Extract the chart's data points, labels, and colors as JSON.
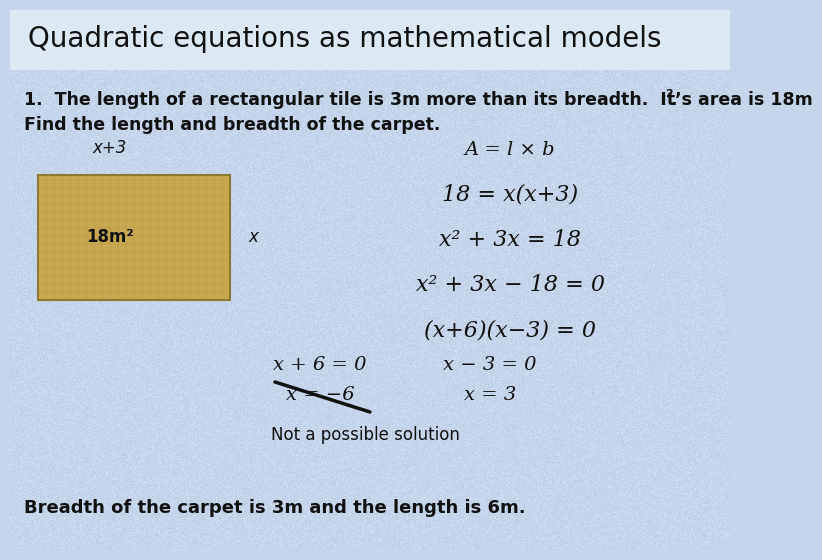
{
  "title": "Quadratic equations as mathematical models",
  "title_fontsize": 20,
  "title_color": "#111111",
  "bg_color": "#c5d5eb",
  "problem_line1": "1.  The length of a rectangular tile is 3m more than its breadth.  It’s area is 18m",
  "problem_sup": "2",
  "problem_sup_dot": ".",
  "problem_line2": "Find the length and breadth of the carpet.",
  "rect_facecolor": "#c8a850",
  "rect_edge": "#8B7A30",
  "label_x_plus_3": "x+3",
  "label_18m2": "18m²",
  "label_x_side": "x",
  "eq1": "A = l × b",
  "eq2": "18 = x(x+3)",
  "eq3": "x² + 3x = 18",
  "eq4": "x² + 3x − 18 = 0",
  "eq5": "(x+6)(x−3) = 0",
  "sol_left1": "x + 6 = 0",
  "sol_left2": "x = −6",
  "sol_right1": "x − 3 = 0",
  "sol_right2": "x = 3",
  "not_possible": "Not a possible solution",
  "conclusion": "Breadth of the carpet is 3m and the length is 6m.",
  "font_body": 12.5,
  "font_eq": 15
}
